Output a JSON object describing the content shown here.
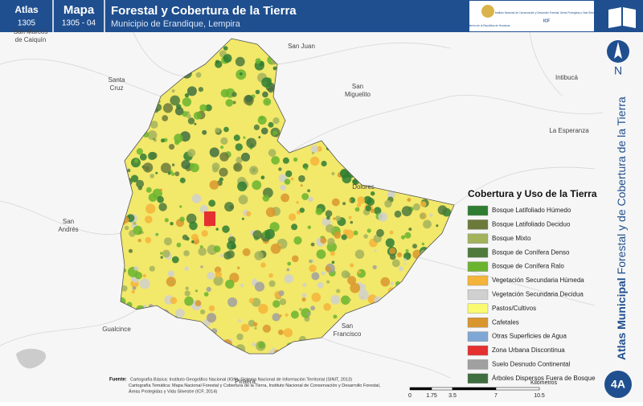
{
  "header": {
    "atlas_label": "Atlas",
    "atlas_number": "1305",
    "map_label": "Mapa",
    "map_number": "1305 - 04",
    "title": "Forestal y Cobertura de la Tierra",
    "subtitle": "Municipio de Erandique, Lempira"
  },
  "logos": [
    "Gobierno de la República de Honduras",
    "Instituto Nacional de Conservación y Desarrollo Forestal, Áreas Protegidas y Vida Silvestre",
    "ICF"
  ],
  "sidebar": {
    "north": "N",
    "series_bold": "Atlas Municipal",
    "series_title": "Forestal y de Cobertura de la Tierra",
    "sheet": "4A"
  },
  "places": [
    {
      "lines": [
        "San Marcos",
        "de Caiquín"
      ]
    },
    {
      "lines": [
        "San Juan"
      ]
    },
    {
      "lines": [
        "Santa",
        "Cruz"
      ]
    },
    {
      "lines": [
        "San",
        "Miguelito"
      ]
    },
    {
      "lines": [
        "Intibucá"
      ]
    },
    {
      "lines": [
        "La Esperanza"
      ]
    },
    {
      "lines": [
        "Dolores"
      ]
    },
    {
      "lines": [
        "San",
        "Andrés"
      ]
    },
    {
      "lines": [
        "Gualcince"
      ]
    },
    {
      "lines": [
        "San",
        "Francisco"
      ]
    },
    {
      "lines": [
        "Piraera"
      ]
    }
  ],
  "legend": {
    "title": "Cobertura y Uso de la Tierra",
    "items": [
      {
        "label": "Bosque Latifoliado Húmedo",
        "color": "#2f7d32"
      },
      {
        "label": "Bosque Latifoliado Deciduo",
        "color": "#6b7a3a"
      },
      {
        "label": "Bosque Mixto",
        "color": "#a3b35c"
      },
      {
        "label": "Bosque de Conífera Denso",
        "color": "#4f7a3c"
      },
      {
        "label": "Bosque de Conífera Ralo",
        "color": "#6ab42f"
      },
      {
        "label": "Vegetación Secundaria Húmeda",
        "color": "#f4b43a"
      },
      {
        "label": "Vegetación Secundaria Decidua",
        "color": "#d0d0d0"
      },
      {
        "label": "Pastos/Cultivos",
        "color": "#fafa70"
      },
      {
        "label": "Cafetales",
        "color": "#d9962e"
      },
      {
        "label": "Otras Superficies de Agua",
        "color": "#7fa7d6"
      },
      {
        "label": "Zona Urbana Discontinua",
        "color": "#e53030"
      },
      {
        "label": "Suelo Desnudo Continental",
        "color": "#a0a0a0"
      },
      {
        "label": "Árboles Dispersos Fuera de Bosque",
        "color": "#3f6e3f"
      }
    ]
  },
  "sources": {
    "heading": "Fuente:",
    "lines": [
      "Cartografía Básica: Instituto Geográfico Nacional (IGN), Sistema Nacional de Información Territorial (SINIT, 2013)",
      "Cartografía Temática: Mapa Nacional Forestal y Cobertura de la Tierra, Instituto Nacional de Conservación y Desarrollo Forestal,",
      "Áreas Protegidas y Vida Silvestre (ICF, 2014)"
    ]
  },
  "scale": {
    "ticks": [
      "0",
      "1.75",
      "3.5",
      "7",
      "10.5"
    ],
    "unit": "Kilómetros"
  }
}
